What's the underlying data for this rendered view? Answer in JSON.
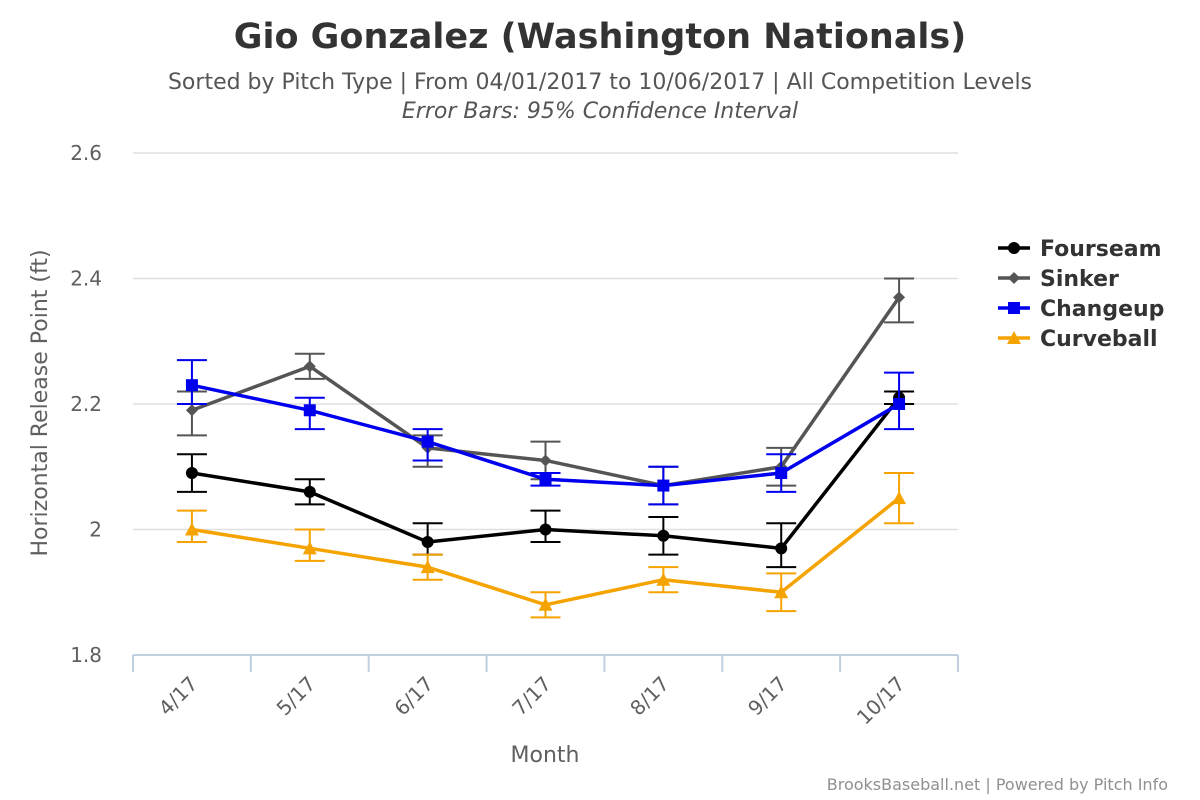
{
  "chart_data": {
    "type": "line",
    "title": "Gio Gonzalez (Washington Nationals)",
    "subtitle": "Sorted by Pitch Type | From 04/01/2017 to 10/06/2017 | All Competition Levels",
    "subtitle2": "Error Bars: 95% Confidence Interval",
    "xlabel": "Month",
    "ylabel": "Horizontal Release Point (ft)",
    "categories": [
      "4/17",
      "5/17",
      "6/17",
      "7/17",
      "8/17",
      "9/17",
      "10/17"
    ],
    "ylim": [
      1.8,
      2.6
    ],
    "yticks": [
      1.8,
      2,
      2.2,
      2.4,
      2.6
    ],
    "ytick_labels": [
      "1.8",
      "2",
      "2.2",
      "2.4",
      "2.6"
    ],
    "grid": true,
    "legend_position": "right",
    "credits": "BrooksBaseball.net | Powered by Pitch Info",
    "series": [
      {
        "name": "Fourseam",
        "color": "#000000",
        "marker": "circle",
        "values": [
          2.09,
          2.06,
          1.98,
          2.0,
          1.99,
          1.97,
          2.21
        ],
        "error_low": [
          2.06,
          2.04,
          1.96,
          1.98,
          1.96,
          1.94,
          2.2
        ],
        "error_high": [
          2.12,
          2.08,
          2.01,
          2.03,
          2.02,
          2.01,
          2.22
        ]
      },
      {
        "name": "Sinker",
        "color": "#555555",
        "marker": "diamond",
        "values": [
          2.19,
          2.26,
          2.13,
          2.11,
          2.07,
          2.1,
          2.37
        ],
        "error_low": [
          2.15,
          2.24,
          2.1,
          2.08,
          2.04,
          2.07,
          2.33
        ],
        "error_high": [
          2.22,
          2.28,
          2.15,
          2.14,
          2.1,
          2.13,
          2.4
        ]
      },
      {
        "name": "Changeup",
        "color": "#0000ee",
        "marker": "square",
        "values": [
          2.23,
          2.19,
          2.14,
          2.08,
          2.07,
          2.09,
          2.2
        ],
        "error_low": [
          2.2,
          2.16,
          2.11,
          2.07,
          2.04,
          2.06,
          2.16
        ],
        "error_high": [
          2.27,
          2.21,
          2.16,
          2.09,
          2.1,
          2.12,
          2.25
        ]
      },
      {
        "name": "Curveball",
        "color": "#f5a300",
        "marker": "triangle",
        "values": [
          2.0,
          1.97,
          1.94,
          1.88,
          1.92,
          1.9,
          2.05
        ],
        "error_low": [
          1.98,
          1.95,
          1.92,
          1.86,
          1.9,
          1.87,
          2.01
        ],
        "error_high": [
          2.03,
          2.0,
          1.96,
          1.9,
          1.94,
          1.93,
          2.09
        ]
      }
    ]
  }
}
